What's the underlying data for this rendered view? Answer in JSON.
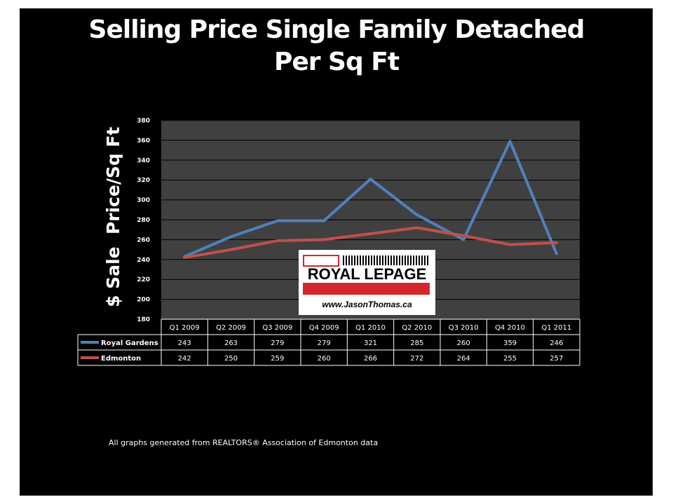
{
  "colors": {
    "background": "#000000",
    "plot_area": "#404040",
    "grid": "#000000",
    "royal_gardens": "#4f81bd",
    "edmonton": "#c0504d",
    "text": "#ffffff"
  },
  "title_lines": [
    "Selling Price Single Family Detached",
    "Per Sq Ft"
  ],
  "footnote": "All graphs generated from REALTORS® Association of Edmonton data",
  "logo": {
    "wordmark": "ROYAL LEPAGE",
    "url": "www.JasonThomas.ca"
  },
  "chart_data": {
    "type": "line",
    "title": "Selling Price Single Family Detached Per Sq Ft",
    "xlabel": "",
    "ylabel": "$ Sale  Price/Sq Ft",
    "ylim": [
      180,
      380
    ],
    "yticks": [
      180,
      200,
      220,
      240,
      260,
      280,
      300,
      320,
      340,
      360,
      380
    ],
    "grid": true,
    "legend": "data-table",
    "categories": [
      "Q1 2009",
      "Q2 2009",
      "Q3 2009",
      "Q4 2009",
      "Q1 2010",
      "Q2 2010",
      "Q3 2010",
      "Q4 2010",
      "Q1 2011"
    ],
    "series": [
      {
        "name": "Royal Gardens",
        "values": [
          243,
          263,
          279,
          279,
          321,
          285,
          260,
          359,
          246
        ]
      },
      {
        "name": "Edmonton",
        "values": [
          242,
          250,
          259,
          260,
          266,
          272,
          264,
          255,
          257
        ]
      }
    ]
  }
}
